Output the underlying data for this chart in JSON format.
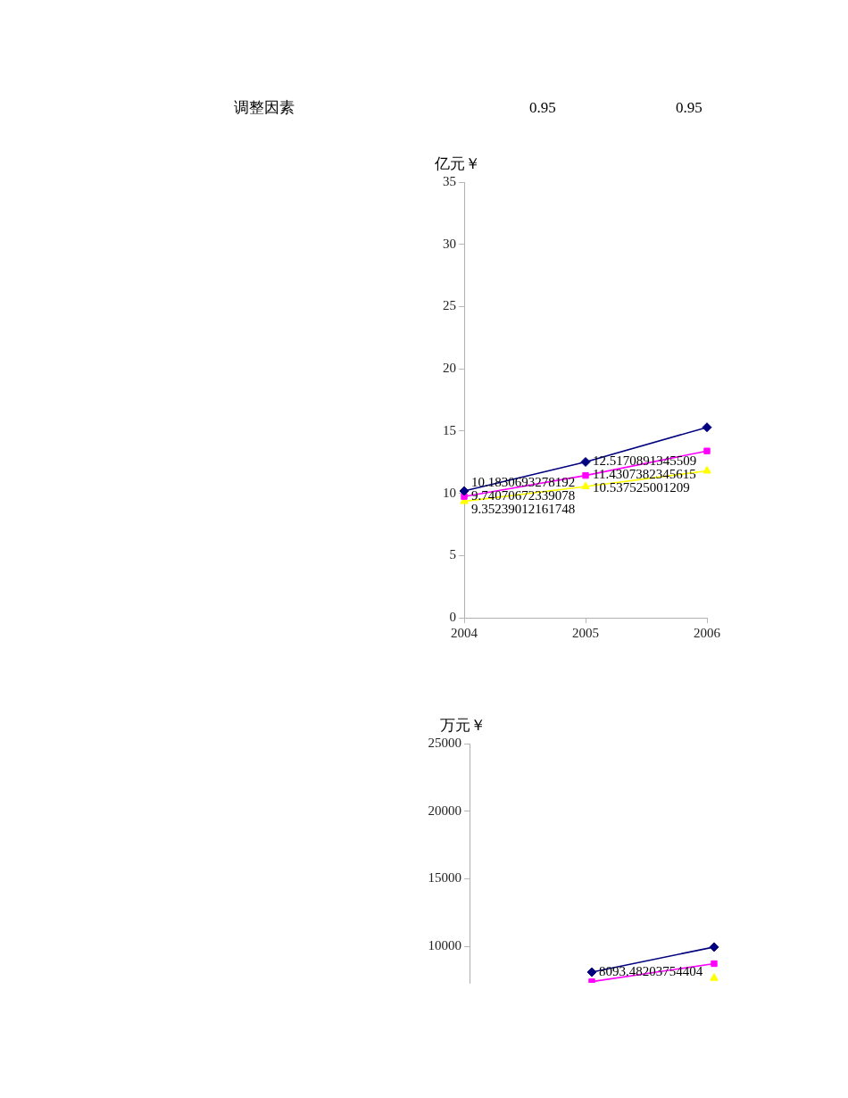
{
  "chart_data": [
    {
      "type": "other",
      "annotations": [
        "调整因素",
        "0.95",
        "0.95"
      ]
    },
    {
      "type": "line",
      "ylabel": "亿元￥",
      "categories": [
        "2004",
        "2005",
        "2006"
      ],
      "ylim": [
        0,
        35
      ],
      "yticks": [
        0,
        5,
        10,
        15,
        20,
        25,
        30,
        35
      ],
      "series": [
        {
          "color": "#000080",
          "marker": "diamond",
          "values": [
            10.1830693278192,
            12.5170891345509,
            15.3
          ],
          "value_labels": [
            "10.1830693278192",
            "12.5170891345509",
            null
          ]
        },
        {
          "color": "#ff00ff",
          "marker": "square",
          "values": [
            9.74070672339078,
            11.4307382345615,
            13.4
          ],
          "value_labels": [
            "9.74070672339078",
            "11.4307382345615",
            null
          ]
        },
        {
          "color": "#ffff00",
          "marker": "triangle",
          "values": [
            9.35239012161748,
            10.537525001209,
            11.8
          ],
          "value_labels": [
            "9.35239012161748",
            "10.537525001209",
            null
          ]
        }
      ]
    },
    {
      "type": "line",
      "ylabel": "万元￥",
      "categories": [
        null,
        null,
        null
      ],
      "ylim": [
        7300,
        25000
      ],
      "yticks": [
        10000,
        15000,
        20000,
        25000
      ],
      "tick_labels": "y",
      "series": [
        {
          "color": "#000080",
          "marker": "diamond",
          "values": [
            null,
            8093.48203754404,
            9950
          ],
          "value_labels": [
            null,
            "8093.48203754404",
            null
          ]
        },
        {
          "color": "#ff00ff",
          "marker": "square",
          "values": [
            null,
            7390,
            8720
          ]
        },
        {
          "color": "#ffff00",
          "marker": "triangle",
          "values": [
            null,
            null,
            7650
          ]
        }
      ]
    }
  ]
}
